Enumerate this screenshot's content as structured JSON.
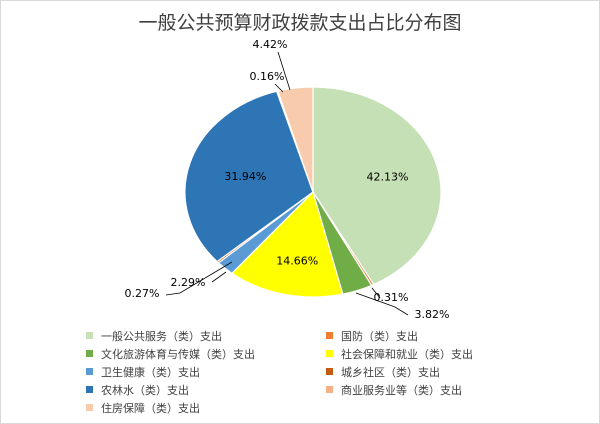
{
  "chart_data": {
    "type": "pie",
    "title": "一般公共预算财政拨款支出占比分布图",
    "slices": [
      {
        "name": "一般公共服务（类）支出",
        "value": 42.13,
        "label": "42.13%",
        "color": "#c5e0b4"
      },
      {
        "name": "国防（类）支出",
        "value": 0.31,
        "label": "0.31%",
        "color": "#ed7d31"
      },
      {
        "name": "文化旅游体育与传媒（类）支出",
        "value": 3.82,
        "label": "3.82%",
        "color": "#70ad47"
      },
      {
        "name": "社会保障和就业（类）支出",
        "value": 14.66,
        "label": "14.66%",
        "color": "#ffff00"
      },
      {
        "name": "卫生健康（类）支出",
        "value": 2.29,
        "label": "2.29%",
        "color": "#5b9bd5"
      },
      {
        "name": "城乡社区（类）支出",
        "value": 0.27,
        "label": "0.27%",
        "color": "#c55a11"
      },
      {
        "name": "农林水（类）支出",
        "value": 31.94,
        "label": "31.94%",
        "color": "#2e75b6"
      },
      {
        "name": "商业服务业等（类）支出",
        "value": 0.16,
        "label": "0.16%",
        "color": "#f4b183"
      },
      {
        "name": "住房保障（类）支出",
        "value": 4.42,
        "label": "4.42%",
        "color": "#f8cbad"
      }
    ],
    "legend_position": "bottom"
  }
}
